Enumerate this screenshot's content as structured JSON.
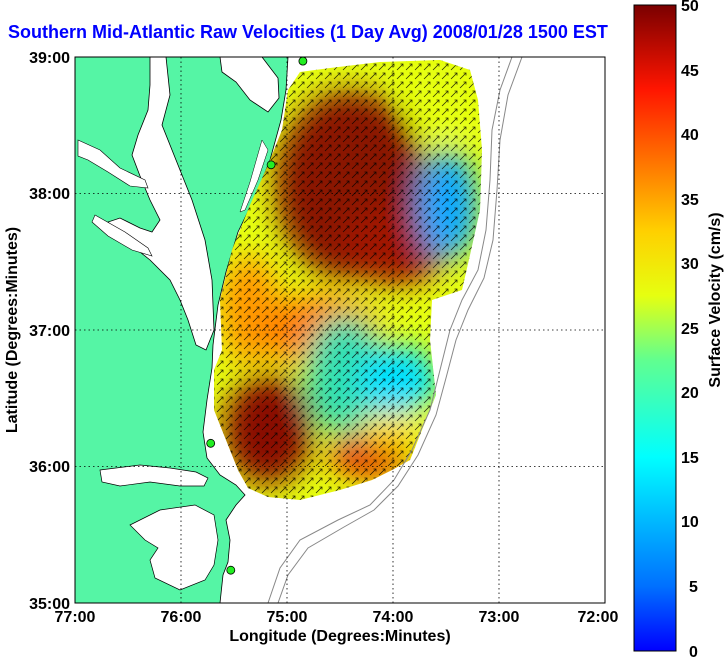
{
  "title": "Southern Mid-Atlantic Raw Velocities (1 Day Avg) 2008/01/28 1500 EST",
  "x_axis": {
    "label": "Longitude (Degrees:Minutes)",
    "ticks": [
      "77:00",
      "76:00",
      "75:00",
      "74:00",
      "73:00",
      "72:00"
    ]
  },
  "y_axis": {
    "label": "Latitude (Degrees:Minutes)",
    "ticks": [
      "39:00",
      "38:00",
      "37:00",
      "36:00",
      "35:00"
    ]
  },
  "colorbar": {
    "label": "Surface Velocity (cm/s)",
    "ticks": [
      "50",
      "45",
      "40",
      "35",
      "30",
      "25",
      "20",
      "15",
      "10",
      "5",
      "0"
    ],
    "min": 0,
    "max": 50
  },
  "map": {
    "lon_range": [
      -77,
      -72
    ],
    "lat_range": [
      35,
      39
    ],
    "land_color": "#55f5a5",
    "water_color": "#ffffff",
    "grid": "dotted",
    "stations": [
      {
        "lon": -74.85,
        "lat": 38.97
      },
      {
        "lon": -75.15,
        "lat": 38.21
      },
      {
        "lon": -75.72,
        "lat": 36.17
      },
      {
        "lon": -75.53,
        "lat": 35.24
      }
    ]
  }
}
